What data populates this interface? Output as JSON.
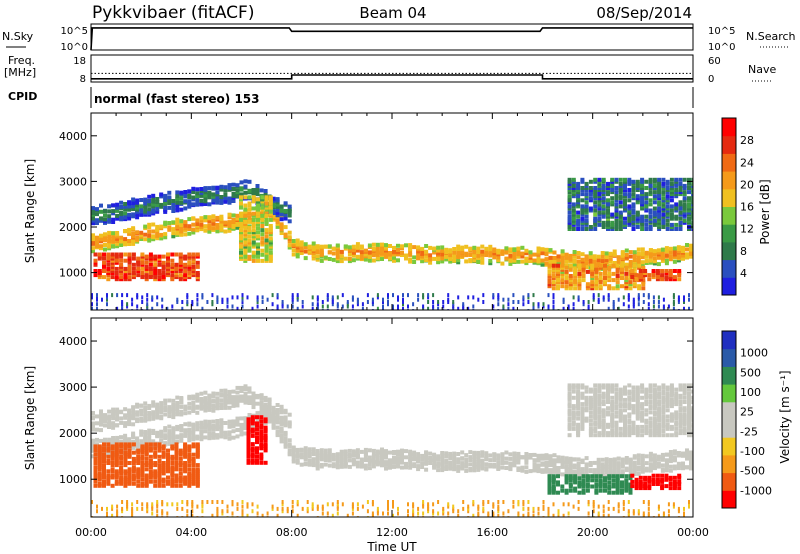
{
  "header": {
    "station": "Pykkvibaer (fitACF)",
    "beam": "Beam 04",
    "date": "08/Sep/2014",
    "cpid_label": "CPID",
    "cpid_text": "normal (fast stereo) 153"
  },
  "colors": {
    "power_scale": [
      "#1f1fe0",
      "#2a4fbf",
      "#2f7a4a",
      "#3a9a45",
      "#7ac93c",
      "#f0c020",
      "#f59a1a",
      "#f06a14",
      "#e52a10",
      "#ff0000"
    ],
    "velocity_scale": [
      "#ff0000",
      "#f05a12",
      "#f59a1a",
      "#f2c820",
      "#c8c8c0",
      "#c8c8c0",
      "#64c83c",
      "#2f8a52",
      "#2a5aa8",
      "#1f2fc0"
    ],
    "noise_color": "#000000",
    "grey_scatter": "#c8c8c0"
  },
  "chart_data": [
    {
      "type": "line",
      "name": "noise-panel",
      "left_label": "N.Sky",
      "right_label": "N.Search",
      "left_ticks": [
        "10^5",
        "10^0"
      ],
      "right_ticks": [
        "10^5",
        "10^0"
      ],
      "log_scale": true,
      "series": [
        {
          "x": [
            0,
            0.05,
            4,
            7.9,
            8.0,
            12,
            16,
            17.9,
            18.0,
            20,
            22,
            24
          ],
          "y": [
            0,
            0.85,
            0.85,
            0.85,
            0.72,
            0.72,
            0.72,
            0.72,
            0.85,
            0.85,
            0.85,
            0.85
          ]
        }
      ]
    },
    {
      "type": "line",
      "name": "frequency-panel",
      "left_label": "Freq.",
      "left_unit": "[MHz]",
      "right_label": "Nave",
      "left_ticks": [
        "18",
        "8"
      ],
      "right_ticks": [
        "60",
        "0"
      ],
      "series": [
        {
          "x": [
            0,
            8,
            8,
            18,
            18,
            24
          ],
          "y": [
            9.2,
            9.2,
            10.6,
            10.6,
            9.2,
            9.2
          ]
        },
        {
          "x": [
            0,
            24
          ],
          "y": [
            11.2,
            11.2
          ]
        }
      ]
    },
    {
      "type": "heatmap",
      "name": "power-panel",
      "ylabel": "Slant Range [km]",
      "xlim": [
        0,
        24
      ],
      "ylim": [
        180,
        4500
      ],
      "yticks": [
        1000,
        2000,
        3000,
        4000
      ],
      "colorbar_label": "Power [dB]",
      "colorbar_ticks": [
        4,
        8,
        12,
        16,
        20,
        24,
        28
      ],
      "bands": [
        {
          "x": [
            0,
            2,
            4,
            5.5,
            6.5,
            7,
            7.5,
            8,
            9,
            10,
            12,
            14,
            16,
            18,
            19,
            20,
            22,
            24
          ],
          "y": [
            1700,
            1900,
            2100,
            2150,
            2300,
            2500,
            2100,
            1600,
            1500,
            1500,
            1500,
            1450,
            1450,
            1400,
            1350,
            1300,
            1400,
            1500
          ],
          "width": 350,
          "level": 20
        },
        {
          "x": [
            0,
            2,
            4,
            5.5,
            6,
            6.5,
            7,
            8
          ],
          "y": [
            2300,
            2500,
            2700,
            2800,
            2900,
            2800,
            2600,
            2300
          ],
          "width": 400,
          "level": 8
        }
      ],
      "patches": [
        {
          "x0": 0.1,
          "x1": 4.2,
          "y0": 900,
          "y1": 1450,
          "level": 27
        },
        {
          "x0": 18.2,
          "x1": 22,
          "y0": 700,
          "y1": 1200,
          "level": 22
        },
        {
          "x0": 21.5,
          "x1": 23.5,
          "y0": 900,
          "y1": 1100,
          "level": 27
        },
        {
          "x0": 19,
          "x1": 24,
          "y0": 2000,
          "y1": 3100,
          "level": 9
        },
        {
          "x0": 5.9,
          "x1": 7.2,
          "y0": 1300,
          "y1": 2700,
          "level": 18
        }
      ],
      "floor": {
        "y0": 200,
        "y1": 550,
        "level": 6
      }
    },
    {
      "type": "heatmap",
      "name": "velocity-panel",
      "ylabel": "Slant Range [km]",
      "xlabel": "Time UT",
      "xlim": [
        0,
        24
      ],
      "ylim": [
        180,
        4500
      ],
      "yticks": [
        1000,
        2000,
        3000,
        4000
      ],
      "xticks": [
        "00:00",
        "04:00",
        "08:00",
        "12:00",
        "16:00",
        "20:00",
        "00:00"
      ],
      "colorbar_label": "Velocity [m s⁻¹]",
      "colorbar_ticks": [
        "1000",
        "500",
        "100",
        "25",
        "-25",
        "-100",
        "-500",
        "-1000"
      ],
      "bands": [
        {
          "x": [
            0,
            2,
            4,
            5.5,
            6.5,
            7,
            7.5,
            8,
            9,
            10,
            12,
            14,
            16,
            18,
            19,
            20,
            22,
            24
          ],
          "y": [
            1700,
            1900,
            2100,
            2150,
            2300,
            2500,
            2100,
            1600,
            1500,
            1500,
            1500,
            1450,
            1450,
            1400,
            1350,
            1300,
            1400,
            1500
          ],
          "width": 400,
          "level": 0
        },
        {
          "x": [
            0,
            2,
            4,
            5.5,
            6,
            6.5,
            7,
            8
          ],
          "y": [
            2300,
            2500,
            2700,
            2800,
            2900,
            2800,
            2600,
            2300
          ],
          "width": 400,
          "level": 0
        }
      ],
      "patches": [
        {
          "x0": 0.1,
          "x1": 4.2,
          "y0": 900,
          "y1": 1800,
          "level": -250
        },
        {
          "x0": 18.2,
          "x1": 21.5,
          "y0": 750,
          "y1": 1150,
          "level": 300
        },
        {
          "x0": 21.5,
          "x1": 23.5,
          "y0": 850,
          "y1": 1150,
          "level": -700
        },
        {
          "x0": 19,
          "x1": 24,
          "y0": 2000,
          "y1": 3100,
          "level": 0
        },
        {
          "x0": 6.2,
          "x1": 7.0,
          "y0": 1400,
          "y1": 2400,
          "level": -600
        }
      ],
      "floor": {
        "y0": 200,
        "y1": 550,
        "level": -60
      }
    }
  ]
}
